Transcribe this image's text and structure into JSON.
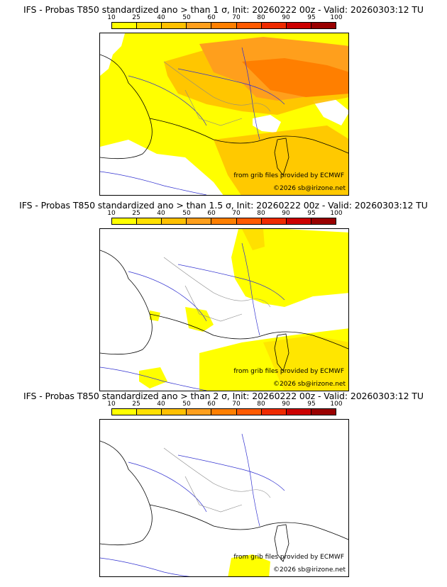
{
  "colors": {
    "scale": [
      "#ffff00",
      "#ffe000",
      "#ffc000",
      "#ff9f1c",
      "#ff7f00",
      "#ff5a00",
      "#ee2a00",
      "#cc0000",
      "#990000",
      "#5a0000"
    ],
    "coast": "#000000",
    "rivers": "#3030d0",
    "borders": "#888888"
  },
  "panels": [
    {
      "title": "IFS - Probas T850  standardized ano > than 1 σ, Init: 20260222 00z - Valid: 20260303:12 TU",
      "colorbar_labels": [
        "10",
        "25",
        "40",
        "50",
        "60",
        "70",
        "80",
        "90",
        "95",
        "100"
      ],
      "credit_source": "from grib files provided by ECMWF",
      "credit_copyright": "©2026 sb@irizone.net"
    },
    {
      "title": "IFS - Probas T850  standardized ano > than 1.5 σ, Init: 20260222 00z - Valid: 20260303:12 TU",
      "colorbar_labels": [
        "10",
        "25",
        "40",
        "50",
        "60",
        "70",
        "80",
        "90",
        "95",
        "100"
      ],
      "credit_source": "from grib files provided by ECMWF",
      "credit_copyright": "©2026 sb@irizone.net"
    },
    {
      "title": "IFS - Probas T850  standardized ano > than 2 σ, Init: 20260222 00z - Valid: 20260303:12 TU",
      "colorbar_labels": [
        "10",
        "25",
        "40",
        "50",
        "60",
        "70",
        "80",
        "90",
        "95",
        "100"
      ],
      "credit_source": "from grib files provided by ECMWF",
      "credit_copyright": "©2026 sb@irizone.net"
    }
  ]
}
